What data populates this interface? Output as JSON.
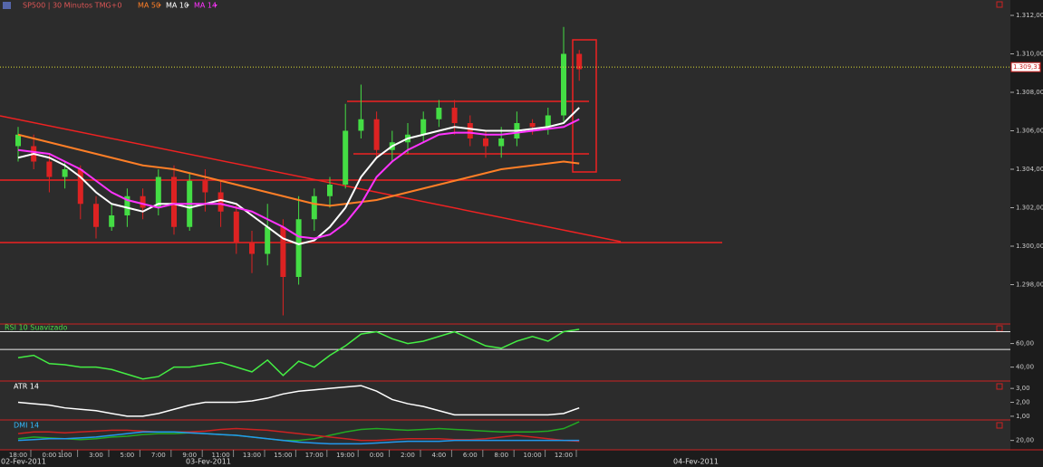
{
  "chart_data": [
    {
      "type": "candlestick",
      "title": "SP500 | 30 Minutos TMG+0",
      "categories": [
        "18:00",
        null,
        "0:00",
        "1:00",
        null,
        "3:00",
        null,
        "5:00",
        null,
        "7:00",
        null,
        "9:00",
        null,
        "11:00",
        null,
        "13:00",
        null,
        "15:00",
        null,
        "17:00",
        null,
        "19:00",
        null,
        "0:00",
        null,
        "2:00",
        null,
        "4:00",
        null,
        "6:00",
        null,
        "8:00",
        null,
        "10:00",
        null,
        "12:00",
        null
      ],
      "dates": [
        "02-Fev-2011",
        "03-Fev-2011",
        "04-Fev-2011"
      ],
      "open": [
        1.3052,
        1.3052,
        1.3044,
        1.3036,
        1.304,
        1.3022,
        1.301,
        1.3016,
        1.3026,
        1.302,
        1.3036,
        1.301,
        1.3034,
        1.3028,
        1.3018,
        1.3002,
        1.2996,
        1.301,
        1.2984,
        1.3014,
        1.3026,
        1.3032,
        1.306,
        1.3066,
        1.305,
        1.3054,
        1.3058,
        1.3066,
        1.3072,
        1.3064,
        1.3056,
        1.3052,
        1.3056,
        1.3064,
        1.3062,
        1.3068,
        1.31
      ],
      "high": [
        1.3062,
        1.3058,
        1.3048,
        1.3044,
        1.3042,
        1.3026,
        1.3022,
        1.303,
        1.303,
        1.304,
        1.3042,
        1.3038,
        1.304,
        1.3034,
        1.3022,
        1.3008,
        1.3022,
        1.3014,
        1.3026,
        1.303,
        1.3036,
        1.3074,
        1.3084,
        1.307,
        1.306,
        1.3064,
        1.307,
        1.3076,
        1.3076,
        1.3068,
        1.306,
        1.3062,
        1.307,
        1.3066,
        1.3072,
        1.3114,
        1.3102
      ],
      "low": [
        1.3044,
        1.304,
        1.3028,
        1.303,
        1.3014,
        1.3004,
        1.3008,
        1.301,
        1.3014,
        1.3016,
        1.3006,
        1.3008,
        1.3018,
        1.301,
        1.2996,
        1.2986,
        1.299,
        1.2964,
        1.298,
        1.3008,
        1.302,
        1.303,
        1.3056,
        1.3046,
        1.3044,
        1.3048,
        1.3054,
        1.3062,
        1.3058,
        1.3052,
        1.3046,
        1.3046,
        1.3052,
        1.3058,
        1.3058,
        1.3064,
        1.3086
      ],
      "close": [
        1.3058,
        1.3044,
        1.3036,
        1.304,
        1.3022,
        1.301,
        1.3016,
        1.3026,
        1.302,
        1.3036,
        1.301,
        1.3034,
        1.3028,
        1.3018,
        1.3002,
        1.2996,
        1.301,
        1.2984,
        1.3014,
        1.3026,
        1.3032,
        1.306,
        1.3066,
        1.305,
        1.3054,
        1.3058,
        1.3066,
        1.3072,
        1.3064,
        1.3056,
        1.3052,
        1.3056,
        1.3064,
        1.3062,
        1.3068,
        1.31,
        1.3092
      ],
      "up_color": "#44dd44",
      "down_color": "#dd2222",
      "series": [
        {
          "name": "MA 50",
          "color": "#ff7f27",
          "values": [
            1.3058,
            1.3056,
            1.3054,
            1.3052,
            1.305,
            1.3048,
            1.3046,
            1.3044,
            1.3042,
            1.3041,
            1.304,
            1.3038,
            1.3036,
            1.3034,
            1.3032,
            1.303,
            1.3028,
            1.3026,
            1.3024,
            1.3022,
            1.3021,
            1.3022,
            1.3023,
            1.3024,
            1.3026,
            1.3028,
            1.303,
            1.3032,
            1.3034,
            1.3036,
            1.3038,
            1.304,
            1.3041,
            1.3042,
            1.3043,
            1.3044,
            1.3043
          ]
        },
        {
          "name": "MA 10",
          "color": "#ffffff",
          "values": [
            1.3046,
            1.3048,
            1.3046,
            1.3042,
            1.3036,
            1.3028,
            1.3022,
            1.302,
            1.3018,
            1.3022,
            1.3022,
            1.302,
            1.3022,
            1.3024,
            1.3022,
            1.3016,
            1.301,
            1.3004,
            1.3001,
            1.3003,
            1.301,
            1.302,
            1.3036,
            1.3046,
            1.3052,
            1.3056,
            1.3058,
            1.306,
            1.3062,
            1.3061,
            1.306,
            1.306,
            1.306,
            1.3061,
            1.3062,
            1.3064,
            1.3072
          ]
        },
        {
          "name": "MA 14",
          "color": "#ff33ff",
          "values": [
            1.305,
            1.3049,
            1.3048,
            1.3044,
            1.304,
            1.3034,
            1.3028,
            1.3024,
            1.3022,
            1.302,
            1.3022,
            1.3022,
            1.3022,
            1.3022,
            1.302,
            1.3018,
            1.3014,
            1.301,
            1.3005,
            1.3004,
            1.3006,
            1.3012,
            1.3022,
            1.3036,
            1.3044,
            1.305,
            1.3054,
            1.3058,
            1.3059,
            1.3059,
            1.3058,
            1.3058,
            1.3059,
            1.306,
            1.3061,
            1.3062,
            1.3066
          ]
        }
      ],
      "last_price": {
        "value": 1.30931,
        "label": "1.309,31"
      },
      "ylim": [
        1.296,
        1.3128
      ],
      "yticks": [
        {
          "value": 1.298,
          "label": "1.298,00"
        },
        {
          "value": 1.3,
          "label": "1.300,00"
        },
        {
          "value": 1.302,
          "label": "1.302,00"
        },
        {
          "value": 1.304,
          "label": "1.304,00"
        },
        {
          "value": 1.306,
          "label": "1.306,00"
        },
        {
          "value": 1.308,
          "label": "1.308,00"
        },
        {
          "value": 1.31,
          "label": "1.310,00"
        },
        {
          "value": 1.312,
          "label": "1.312,00"
        }
      ]
    },
    {
      "type": "line",
      "title": "RSI 10 Suavizado",
      "title_color": "#44dd44",
      "series": [
        {
          "color": "#44ee44",
          "values": [
            48,
            50,
            43,
            42,
            40,
            40,
            38,
            34,
            30,
            32,
            40,
            40,
            42,
            44,
            40,
            36,
            46,
            33,
            45,
            40,
            50,
            58,
            68,
            70,
            64,
            60,
            62,
            66,
            70,
            64,
            58,
            56,
            62,
            66,
            62,
            70,
            72
          ]
        }
      ],
      "levels": [
        70,
        55
      ],
      "ylim": [
        29,
        75
      ],
      "yticks": [
        {
          "value": 40,
          "label": "40,00"
        },
        {
          "value": 60,
          "label": "60,00"
        }
      ]
    },
    {
      "type": "line",
      "title": "ATR 14",
      "title_color": "#ffffff",
      "series": [
        {
          "color": "#ffffff",
          "values": [
            2.0,
            1.9,
            1.8,
            1.6,
            1.5,
            1.4,
            1.2,
            1.0,
            1.0,
            1.2,
            1.5,
            1.8,
            2.0,
            2.0,
            2.0,
            2.1,
            2.3,
            2.6,
            2.8,
            2.9,
            3.0,
            3.1,
            3.2,
            2.8,
            2.2,
            1.9,
            1.7,
            1.4,
            1.1,
            1.1,
            1.1,
            1.1,
            1.1,
            1.1,
            1.1,
            1.2,
            1.6
          ]
        }
      ],
      "ylim": [
        0.8,
        3.4
      ],
      "yticks": [
        {
          "value": 1,
          "label": "1,00"
        },
        {
          "value": 2,
          "label": "2,00"
        },
        {
          "value": 3,
          "label": "3,00"
        }
      ]
    },
    {
      "type": "line",
      "title": "DMI 14",
      "title_color": "#33bbff",
      "series": [
        {
          "color": "#22aa22",
          "values": [
            22,
            24,
            23,
            22,
            21,
            22,
            24,
            25,
            27,
            28,
            28,
            29,
            28,
            27,
            26,
            24,
            22,
            20,
            20,
            22,
            26,
            30,
            33,
            34,
            33,
            32,
            33,
            34,
            33,
            32,
            31,
            30,
            30,
            30,
            31,
            34,
            42
          ]
        },
        {
          "color": "#cc2222",
          "values": [
            28,
            30,
            30,
            29,
            30,
            31,
            32,
            32,
            31,
            30,
            30,
            30,
            31,
            33,
            34,
            33,
            32,
            30,
            28,
            26,
            24,
            22,
            20,
            20,
            21,
            22,
            22,
            22,
            21,
            21,
            22,
            24,
            26,
            24,
            22,
            20,
            19
          ]
        },
        {
          "color": "#2299ee",
          "values": [
            20,
            21,
            22,
            22,
            23,
            24,
            26,
            28,
            30,
            30,
            30,
            29,
            28,
            27,
            26,
            24,
            22,
            20,
            18,
            17,
            16,
            16,
            16,
            17,
            18,
            19,
            19,
            19,
            20,
            20,
            20,
            20,
            20,
            20,
            20,
            20,
            20
          ]
        }
      ],
      "ylim": [
        9,
        42
      ],
      "yticks": [
        {
          "value": 20,
          "label": "20,00"
        }
      ]
    }
  ]
}
